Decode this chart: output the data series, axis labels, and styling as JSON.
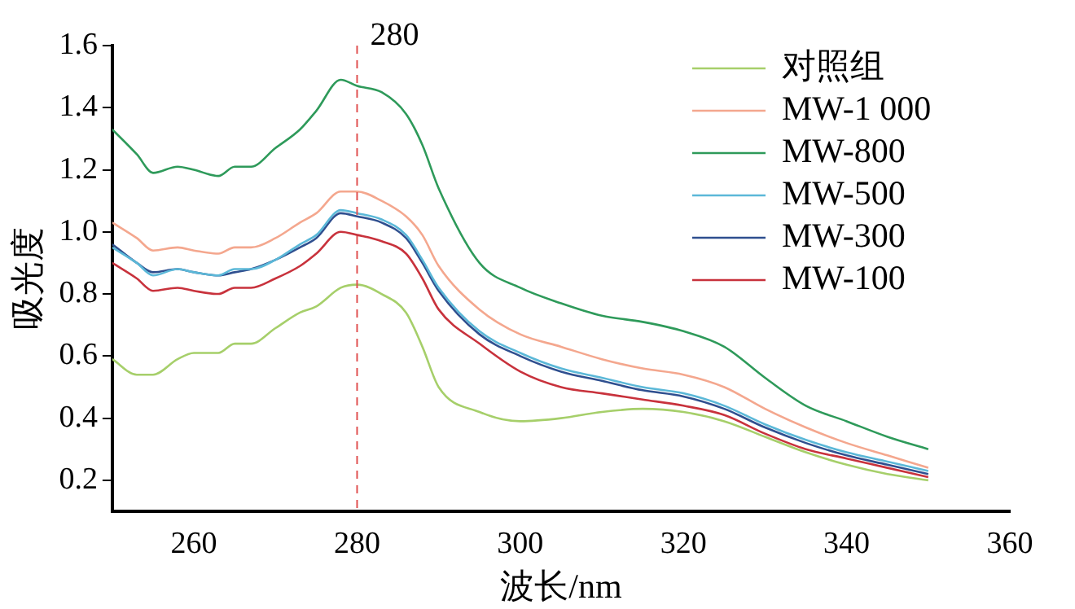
{
  "chart_data": {
    "type": "line",
    "xlabel": "波长/nm",
    "ylabel": "吸光度",
    "x": [
      250,
      253,
      255,
      258,
      260,
      263,
      265,
      267,
      270,
      273,
      275,
      278,
      280,
      283,
      286,
      288,
      290,
      295,
      300,
      305,
      310,
      315,
      320,
      325,
      330,
      335,
      340,
      345,
      350
    ],
    "series": [
      {
        "name": "对照组",
        "color": "#a6cf6a",
        "values": [
          0.59,
          0.54,
          0.54,
          0.59,
          0.61,
          0.61,
          0.64,
          0.64,
          0.69,
          0.74,
          0.76,
          0.82,
          0.83,
          0.8,
          0.74,
          0.63,
          0.5,
          0.42,
          0.39,
          0.4,
          0.42,
          0.43,
          0.42,
          0.39,
          0.34,
          0.29,
          0.25,
          0.22,
          0.2
        ]
      },
      {
        "name": "MW-1 000",
        "color": "#f4a78e",
        "values": [
          1.03,
          0.98,
          0.94,
          0.95,
          0.94,
          0.93,
          0.95,
          0.95,
          0.98,
          1.03,
          1.06,
          1.13,
          1.13,
          1.1,
          1.05,
          0.99,
          0.89,
          0.75,
          0.67,
          0.63,
          0.59,
          0.56,
          0.54,
          0.5,
          0.43,
          0.37,
          0.32,
          0.28,
          0.24
        ]
      },
      {
        "name": "MW-800",
        "color": "#2e9a5a",
        "values": [
          1.33,
          1.25,
          1.19,
          1.21,
          1.2,
          1.18,
          1.21,
          1.21,
          1.27,
          1.33,
          1.39,
          1.49,
          1.47,
          1.45,
          1.38,
          1.28,
          1.14,
          0.9,
          0.82,
          0.77,
          0.73,
          0.71,
          0.68,
          0.63,
          0.53,
          0.44,
          0.39,
          0.34,
          0.3
        ]
      },
      {
        "name": "MW-500",
        "color": "#5bb8d8",
        "values": [
          0.95,
          0.9,
          0.86,
          0.88,
          0.87,
          0.86,
          0.88,
          0.88,
          0.91,
          0.96,
          0.99,
          1.07,
          1.06,
          1.04,
          0.99,
          0.91,
          0.82,
          0.68,
          0.61,
          0.56,
          0.53,
          0.5,
          0.48,
          0.44,
          0.38,
          0.33,
          0.29,
          0.26,
          0.23
        ]
      },
      {
        "name": "MW-300",
        "color": "#2f4f8f",
        "values": [
          0.96,
          0.9,
          0.87,
          0.88,
          0.87,
          0.86,
          0.87,
          0.88,
          0.91,
          0.95,
          0.98,
          1.06,
          1.05,
          1.03,
          0.98,
          0.9,
          0.81,
          0.67,
          0.6,
          0.55,
          0.52,
          0.49,
          0.47,
          0.43,
          0.37,
          0.32,
          0.28,
          0.25,
          0.22
        ]
      },
      {
        "name": "MW-100",
        "color": "#c8323c",
        "values": [
          0.9,
          0.85,
          0.81,
          0.82,
          0.81,
          0.8,
          0.82,
          0.82,
          0.85,
          0.89,
          0.93,
          1.0,
          0.99,
          0.97,
          0.93,
          0.85,
          0.75,
          0.64,
          0.55,
          0.5,
          0.48,
          0.46,
          0.44,
          0.41,
          0.35,
          0.3,
          0.27,
          0.24,
          0.21
        ]
      }
    ],
    "xlim": [
      250,
      360
    ],
    "xticks": [
      260,
      280,
      300,
      320,
      340,
      360
    ],
    "ylim": [
      0.1,
      1.6
    ],
    "yticks": [
      0.2,
      0.4,
      0.6,
      0.8,
      {
        "value": 1,
        "label": "1.0"
      },
      1.2,
      1.4,
      1.6
    ],
    "ref_lines": [
      {
        "axis": "x",
        "value": 280,
        "label": "280",
        "color": "#e05050",
        "line_style": "dashed"
      }
    ],
    "grid": false,
    "legend": "top right",
    "marker": "none",
    "line_style": "solid"
  }
}
